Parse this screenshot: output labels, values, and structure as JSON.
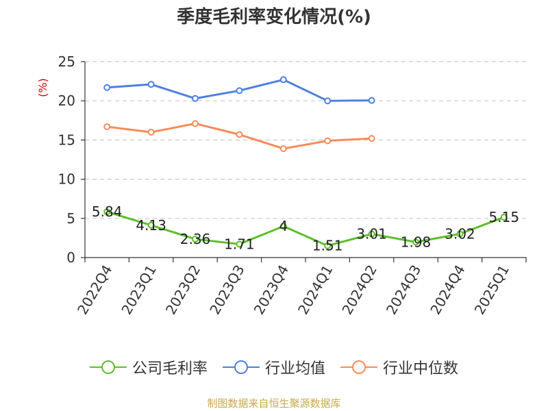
{
  "chart_data": {
    "type": "line",
    "title": "季度毛利率变化情况(%)",
    "ylabel": "(%)",
    "xlabel": "",
    "categories": [
      "2022Q4",
      "2023Q1",
      "2023Q2",
      "2023Q3",
      "2023Q4",
      "2024Q1",
      "2024Q2",
      "2024Q3",
      "2024Q4",
      "2025Q1"
    ],
    "ylim": [
      0,
      25
    ],
    "yticks": [
      0,
      5,
      10,
      15,
      20,
      25
    ],
    "grid": true,
    "legend_position": "bottom",
    "series": [
      {
        "name": "公司毛利率",
        "color": "#5cbf2a",
        "values": [
          5.84,
          4.13,
          2.36,
          1.71,
          4,
          1.51,
          3.01,
          1.98,
          3.02,
          5.15
        ],
        "labels": [
          "5.84",
          "4.13",
          "2.36",
          "1.71",
          "4",
          "1.51",
          "3.01",
          "1.98",
          "3.02",
          "5.15"
        ]
      },
      {
        "name": "行业均值",
        "color": "#4f7fe0",
        "values": [
          21.7,
          22.1,
          20.3,
          21.3,
          22.7,
          20.0,
          20.05,
          null,
          null,
          null
        ]
      },
      {
        "name": "行业中位数",
        "color": "#f68c5a",
        "values": [
          16.7,
          16.0,
          17.1,
          15.7,
          13.9,
          14.9,
          15.2,
          null,
          null,
          null
        ]
      }
    ]
  },
  "source": "制图数据来自恒生聚源数据库"
}
